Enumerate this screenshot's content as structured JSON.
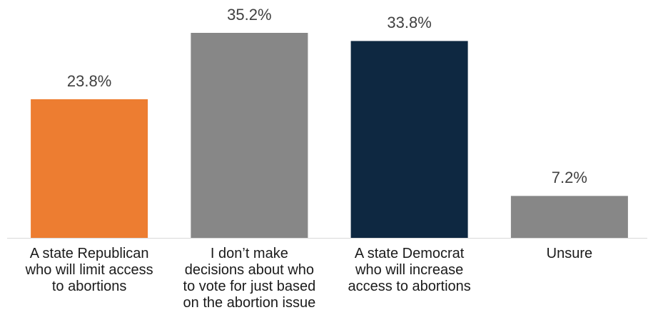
{
  "chart_data": {
    "type": "bar",
    "categories": [
      "A state Republican\nwho will limit access\nto abortions",
      "I don’t make\ndecisions about who\nto vote for just based\non the abortion issue",
      "A state Democrat\nwho will increase\naccess to abortions",
      "Unsure"
    ],
    "values": [
      23.8,
      35.2,
      33.8,
      7.2
    ],
    "value_labels": [
      "23.8%",
      "35.2%",
      "33.8%",
      "7.2%"
    ],
    "colors": [
      "#ED7D31",
      "#878787",
      "#0E2841",
      "#878787"
    ],
    "axis_color": "#D9D9D9",
    "ylim": [
      0,
      35.2
    ],
    "grid": false,
    "legend": "none"
  }
}
